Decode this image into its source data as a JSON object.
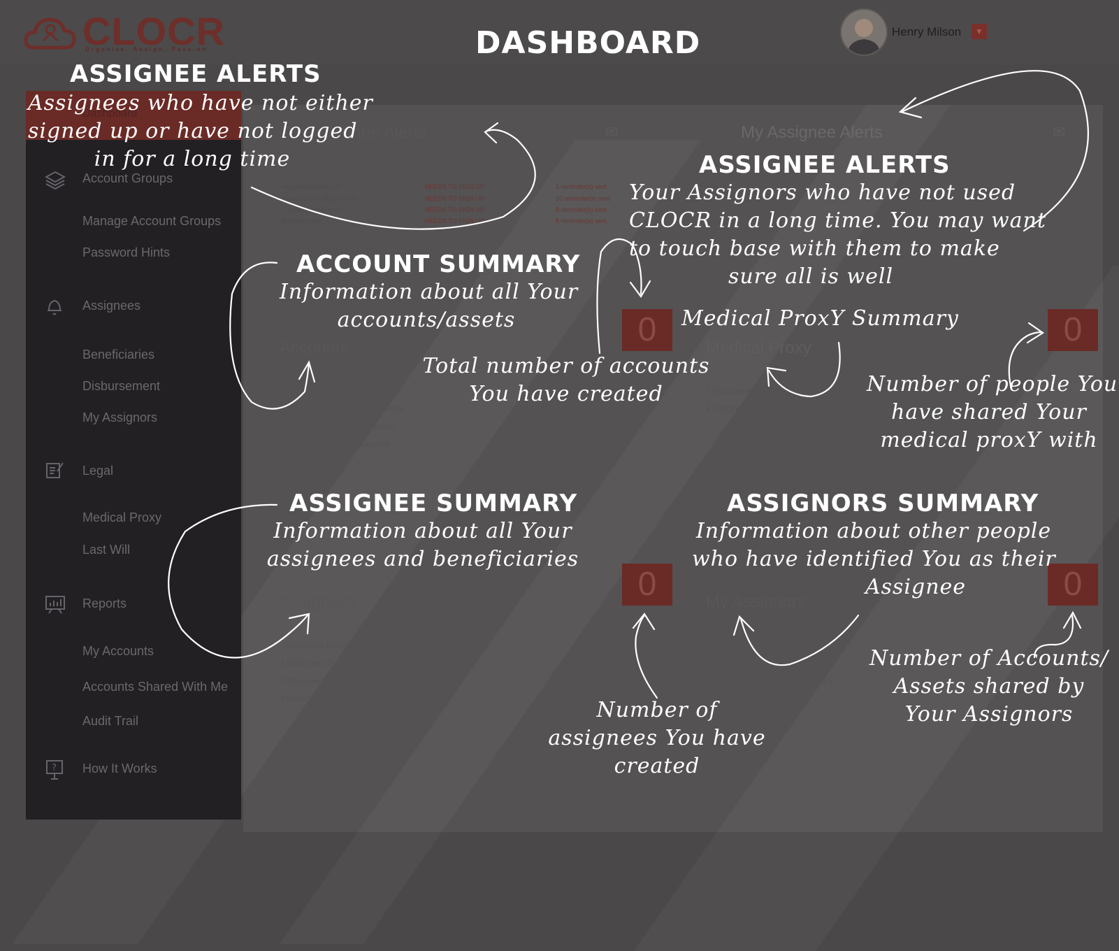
{
  "app": {
    "logo_text": "CLOCR",
    "tagline": "Organize. Assign. Pass-on",
    "page_title": "DASHBOARD"
  },
  "user": {
    "name": "Henry Milson",
    "caret": "▼"
  },
  "sidebar": {
    "active": "Dashboard",
    "items": [
      {
        "label": "Account Groups",
        "icon": "layers-icon"
      },
      {
        "label": "Manage Account Groups"
      },
      {
        "label": "Password Hints"
      },
      {
        "label": "Assignees",
        "icon": "bell-icon"
      },
      {
        "label": "Beneficiaries"
      },
      {
        "label": "Disbursement"
      },
      {
        "label": "My Assignors"
      },
      {
        "label": "Legal",
        "icon": "document-edit-icon"
      },
      {
        "label": "Medical Proxy"
      },
      {
        "label": "Last Will"
      },
      {
        "label": "Reports",
        "icon": "chart-board-icon"
      },
      {
        "label": "My Accounts"
      },
      {
        "label": "Accounts Shared With Me"
      },
      {
        "label": "Audit Trail"
      },
      {
        "label": "How It Works",
        "icon": "question-board-icon"
      }
    ]
  },
  "panels": {
    "assignee_alerts": {
      "title": "gnee Alerts",
      "rows": [
        {
          "email": "neo.jinks@gmail.com",
          "status": "NEEDS TO SIGN UP",
          "reminder": "1 reminder(s) sent"
        },
        {
          "email": "susan.johnson@gmail.com",
          "status": "NEEDS TO SIGN UP",
          "reminder": "10 reminder(s) sent"
        },
        {
          "email": "...ruserb@gmail.com",
          "status": "NEEDS TO SIGN UP",
          "reminder": "8 reminder(s) sent"
        },
        {
          "email": "dj@gmail.com",
          "status": "NEEDS TO SIGN UP",
          "reminder": "8 reminder(s) sent"
        }
      ]
    },
    "my_assignee_alerts": {
      "title": "My Assignee Alerts"
    },
    "accounts": {
      "title": "Accounts",
      "count": "0",
      "lines": [
        "1 Accounts in Ultra-Secure Mode",
        "Accounts in Normal Secure Mode",
        "0 Accounts without Documents",
        "3 Accounts without Assignees"
      ]
    },
    "medical_proxy": {
      "title": "Medical Proxy",
      "count": "0",
      "lines": [
        "1 Documents",
        "4 Assignees"
      ]
    },
    "assignees": {
      "title": "Assignees",
      "count": "0",
      "lines": [
        "Assignees Identified",
        "4 Assignees that were Assigned Accounts",
        "0 Assignees don't have Accounts Assigned",
        "3 Beneficiaries"
      ]
    },
    "my_assignors": {
      "title": "My Assignors",
      "count": "0",
      "lines": [
        "1 Selected me as their Assignee",
        "4 Accounts have been shared",
        "0 Selected me as their Beneficiary"
      ]
    }
  },
  "annotations": {
    "alerts_left_head": "ASSIGNEE ALERTS",
    "alerts_left_text": [
      "Assignees who have not either",
      "signed up or have not logged",
      "in for a long time"
    ],
    "alerts_right_head": "ASSIGNEE ALERTS",
    "alerts_right_text": [
      "Your Assignors who have not used",
      "CLOCR in a long time. You may want",
      "to touch base with them to make",
      "sure all is well"
    ],
    "account_head": "ACCOUNT SUMMARY",
    "account_text": [
      "Information about all Your",
      "accounts/assets"
    ],
    "medical_head": "Medical ProxY Summary",
    "total_accounts": [
      "Total number of accounts",
      "You have created"
    ],
    "medical_people": [
      "Number of people You",
      "have shared Your",
      "medical proxY with"
    ],
    "assignee_head": "ASSIGNEE SUMMARY",
    "assignee_text": [
      "Information about all Your",
      "assignees and beneficiaries"
    ],
    "assignors_head": "ASSIGNORS SUMMARY",
    "assignors_text": [
      "Information about other people",
      "who have identified You as their",
      "Assignee"
    ],
    "assignees_count": [
      "Number of",
      "assignees You have",
      "created"
    ],
    "assignors_count": [
      "Number of Accounts/",
      "Assets shared by",
      "Your Assignors"
    ]
  },
  "colors": {
    "accent": "#6a2a26",
    "sidebar": "#232024",
    "background": "#4a4849"
  }
}
